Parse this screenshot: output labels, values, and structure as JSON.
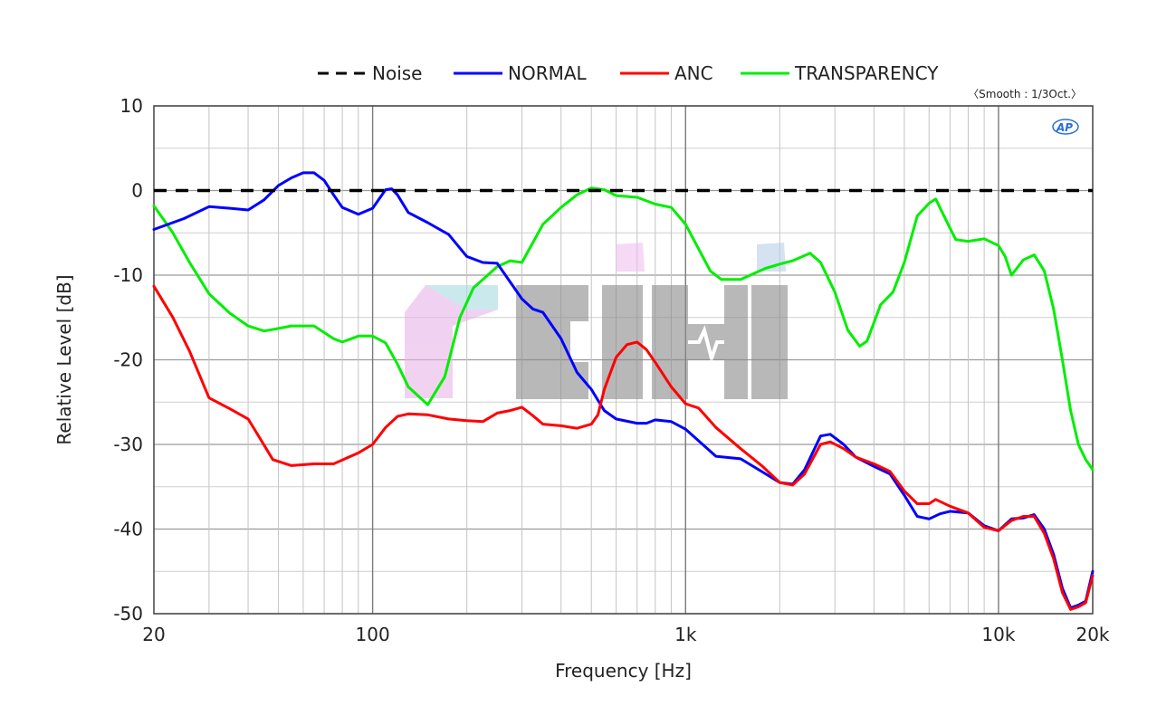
{
  "chart_data": {
    "type": "line",
    "xlabel": "Frequency [Hz]",
    "ylabel": "Relative Level [dB]",
    "xscale": "log",
    "xlim": [
      20,
      20000
    ],
    "ylim": [
      -50,
      10
    ],
    "grid": true,
    "legend_placement": "top-center",
    "x_ticks": [
      {
        "value": 20,
        "label": "20"
      },
      {
        "value": 100,
        "label": "100"
      },
      {
        "value": 1000,
        "label": "1k"
      },
      {
        "value": 10000,
        "label": "10k"
      },
      {
        "value": 20000,
        "label": "20k"
      }
    ],
    "y_ticks": [
      {
        "value": 10,
        "label": "10"
      },
      {
        "value": 0,
        "label": "0"
      },
      {
        "value": -10,
        "label": "-10"
      },
      {
        "value": -20,
        "label": "-20"
      },
      {
        "value": -30,
        "label": "-30"
      },
      {
        "value": -40,
        "label": "-40"
      },
      {
        "value": -50,
        "label": "-50"
      }
    ],
    "annotation": "〈Smooth : 1/3Oct.〉",
    "logo_text": "AP",
    "series": [
      {
        "name": "Noise",
        "color": "#000000",
        "dash": true,
        "points": [
          [
            20,
            0
          ],
          [
            20000,
            0
          ]
        ]
      },
      {
        "name": "NORMAL",
        "color": "#0000ff",
        "points": [
          [
            20,
            -4.6
          ],
          [
            25,
            -3.3
          ],
          [
            30,
            -1.9
          ],
          [
            35,
            -2.1
          ],
          [
            40,
            -2.3
          ],
          [
            45,
            -1.1
          ],
          [
            50,
            0.6
          ],
          [
            55,
            1.5
          ],
          [
            60,
            2.1
          ],
          [
            65,
            2.1
          ],
          [
            70,
            1.2
          ],
          [
            75,
            -0.5
          ],
          [
            80,
            -2.0
          ],
          [
            90,
            -2.8
          ],
          [
            100,
            -2.1
          ],
          [
            110,
            0.1
          ],
          [
            115,
            0.2
          ],
          [
            120,
            -0.5
          ],
          [
            130,
            -2.6
          ],
          [
            150,
            -3.8
          ],
          [
            175,
            -5.2
          ],
          [
            200,
            -7.8
          ],
          [
            225,
            -8.5
          ],
          [
            250,
            -8.6
          ],
          [
            275,
            -10.8
          ],
          [
            300,
            -12.8
          ],
          [
            325,
            -14.0
          ],
          [
            350,
            -14.4
          ],
          [
            400,
            -17.5
          ],
          [
            450,
            -21.5
          ],
          [
            500,
            -23.5
          ],
          [
            550,
            -26.0
          ],
          [
            600,
            -27.0
          ],
          [
            700,
            -27.5
          ],
          [
            750,
            -27.5
          ],
          [
            800,
            -27.1
          ],
          [
            900,
            -27.3
          ],
          [
            1000,
            -28.2
          ],
          [
            1250,
            -31.4
          ],
          [
            1500,
            -31.7
          ],
          [
            1750,
            -33.2
          ],
          [
            2000,
            -34.5
          ],
          [
            2200,
            -34.7
          ],
          [
            2400,
            -33.0
          ],
          [
            2700,
            -29.0
          ],
          [
            2900,
            -28.8
          ],
          [
            3200,
            -30.0
          ],
          [
            3500,
            -31.5
          ],
          [
            4000,
            -32.6
          ],
          [
            4500,
            -33.5
          ],
          [
            5000,
            -36.0
          ],
          [
            5500,
            -38.5
          ],
          [
            6000,
            -38.8
          ],
          [
            6500,
            -38.2
          ],
          [
            7000,
            -37.9
          ],
          [
            8000,
            -38.1
          ],
          [
            9000,
            -39.6
          ],
          [
            10000,
            -40.2
          ],
          [
            11000,
            -38.8
          ],
          [
            12000,
            -38.7
          ],
          [
            13000,
            -38.3
          ],
          [
            14000,
            -40.0
          ],
          [
            15000,
            -43.0
          ],
          [
            16000,
            -47.0
          ],
          [
            17000,
            -49.3
          ],
          [
            18000,
            -49.0
          ],
          [
            19000,
            -48.5
          ],
          [
            20000,
            -45.0
          ]
        ]
      },
      {
        "name": "ANC",
        "color": "#ff0000",
        "points": [
          [
            20,
            -11.3
          ],
          [
            23,
            -15.0
          ],
          [
            26,
            -19.0
          ],
          [
            30,
            -24.5
          ],
          [
            35,
            -25.8
          ],
          [
            40,
            -27.0
          ],
          [
            44,
            -29.5
          ],
          [
            48,
            -31.8
          ],
          [
            55,
            -32.5
          ],
          [
            65,
            -32.3
          ],
          [
            75,
            -32.3
          ],
          [
            90,
            -31.0
          ],
          [
            100,
            -30.0
          ],
          [
            110,
            -28.0
          ],
          [
            120,
            -26.7
          ],
          [
            130,
            -26.4
          ],
          [
            150,
            -26.5
          ],
          [
            175,
            -27.0
          ],
          [
            200,
            -27.2
          ],
          [
            225,
            -27.3
          ],
          [
            250,
            -26.3
          ],
          [
            275,
            -26.0
          ],
          [
            300,
            -25.6
          ],
          [
            325,
            -26.6
          ],
          [
            350,
            -27.6
          ],
          [
            400,
            -27.8
          ],
          [
            450,
            -28.1
          ],
          [
            500,
            -27.6
          ],
          [
            525,
            -26.5
          ],
          [
            550,
            -23.5
          ],
          [
            600,
            -19.7
          ],
          [
            650,
            -18.2
          ],
          [
            700,
            -17.9
          ],
          [
            750,
            -18.8
          ],
          [
            800,
            -20.3
          ],
          [
            900,
            -23.2
          ],
          [
            1000,
            -25.2
          ],
          [
            1100,
            -25.7
          ],
          [
            1250,
            -28.0
          ],
          [
            1500,
            -30.5
          ],
          [
            1750,
            -32.5
          ],
          [
            2000,
            -34.5
          ],
          [
            2200,
            -34.8
          ],
          [
            2400,
            -33.5
          ],
          [
            2700,
            -30.0
          ],
          [
            2900,
            -29.7
          ],
          [
            3200,
            -30.5
          ],
          [
            3500,
            -31.5
          ],
          [
            4000,
            -32.3
          ],
          [
            4500,
            -33.2
          ],
          [
            5000,
            -35.5
          ],
          [
            5500,
            -37.0
          ],
          [
            6000,
            -37.0
          ],
          [
            6300,
            -36.5
          ],
          [
            7000,
            -37.3
          ],
          [
            8000,
            -38.1
          ],
          [
            9000,
            -39.8
          ],
          [
            10000,
            -40.2
          ],
          [
            11000,
            -39.0
          ],
          [
            12000,
            -38.5
          ],
          [
            13000,
            -38.5
          ],
          [
            14000,
            -40.5
          ],
          [
            15000,
            -43.5
          ],
          [
            16000,
            -47.5
          ],
          [
            17000,
            -49.5
          ],
          [
            18000,
            -49.2
          ],
          [
            19000,
            -48.7
          ],
          [
            20000,
            -45.5
          ]
        ]
      },
      {
        "name": "TRANSPARENCY",
        "color": "#00ee00",
        "points": [
          [
            20,
            -1.8
          ],
          [
            23,
            -5.0
          ],
          [
            26,
            -8.5
          ],
          [
            30,
            -12.2
          ],
          [
            35,
            -14.5
          ],
          [
            40,
            -16.0
          ],
          [
            45,
            -16.6
          ],
          [
            50,
            -16.3
          ],
          [
            55,
            -16.0
          ],
          [
            65,
            -16.0
          ],
          [
            75,
            -17.5
          ],
          [
            80,
            -17.9
          ],
          [
            90,
            -17.2
          ],
          [
            100,
            -17.2
          ],
          [
            110,
            -18.0
          ],
          [
            120,
            -20.5
          ],
          [
            130,
            -23.2
          ],
          [
            150,
            -25.3
          ],
          [
            170,
            -22.0
          ],
          [
            190,
            -15.0
          ],
          [
            210,
            -11.5
          ],
          [
            250,
            -9.0
          ],
          [
            275,
            -8.3
          ],
          [
            300,
            -8.5
          ],
          [
            350,
            -4.0
          ],
          [
            400,
            -2.0
          ],
          [
            450,
            -0.5
          ],
          [
            500,
            0.3
          ],
          [
            550,
            0.1
          ],
          [
            600,
            -0.6
          ],
          [
            700,
            -0.8
          ],
          [
            800,
            -1.6
          ],
          [
            900,
            -2.0
          ],
          [
            1000,
            -4.0
          ],
          [
            1200,
            -9.5
          ],
          [
            1300,
            -10.5
          ],
          [
            1500,
            -10.5
          ],
          [
            1800,
            -9.2
          ],
          [
            2000,
            -8.7
          ],
          [
            2200,
            -8.3
          ],
          [
            2500,
            -7.4
          ],
          [
            2700,
            -8.5
          ],
          [
            3000,
            -12.0
          ],
          [
            3300,
            -16.5
          ],
          [
            3600,
            -18.4
          ],
          [
            3800,
            -17.8
          ],
          [
            4200,
            -13.5
          ],
          [
            4600,
            -12.0
          ],
          [
            5000,
            -8.5
          ],
          [
            5500,
            -3.0
          ],
          [
            6000,
            -1.5
          ],
          [
            6300,
            -1.0
          ],
          [
            6800,
            -3.5
          ],
          [
            7300,
            -5.8
          ],
          [
            8000,
            -6.0
          ],
          [
            9000,
            -5.7
          ],
          [
            10000,
            -6.5
          ],
          [
            10500,
            -7.8
          ],
          [
            11000,
            -10.0
          ],
          [
            12000,
            -8.2
          ],
          [
            13000,
            -7.6
          ],
          [
            14000,
            -9.5
          ],
          [
            15000,
            -14.0
          ],
          [
            16000,
            -20.0
          ],
          [
            17000,
            -26.0
          ],
          [
            18000,
            -30.0
          ],
          [
            19000,
            -31.8
          ],
          [
            20000,
            -33.0
          ]
        ]
      }
    ]
  },
  "watermark": {
    "text": "CiHi"
  }
}
